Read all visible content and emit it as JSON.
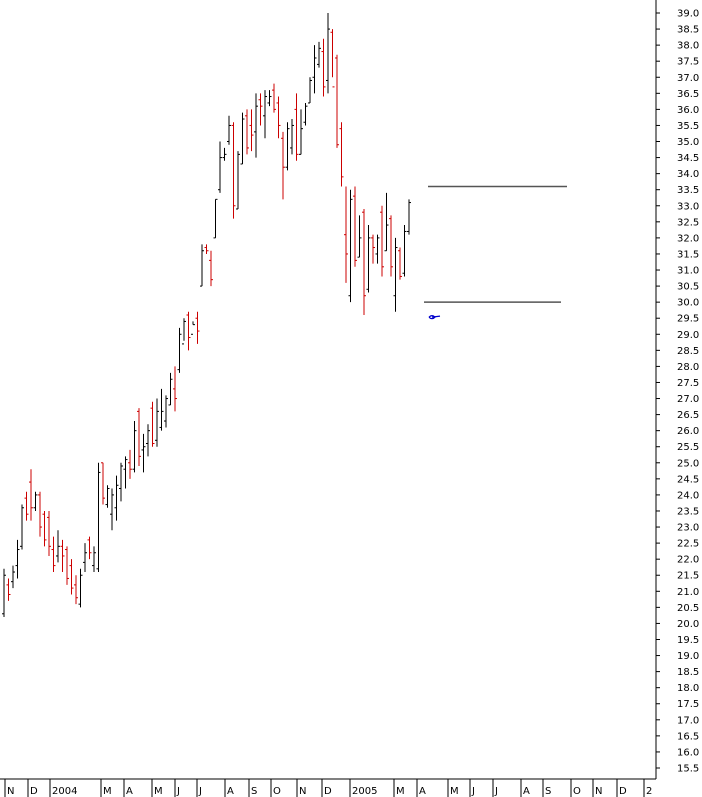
{
  "chart_data": {
    "type": "ohlc",
    "title": "",
    "xlabel": "",
    "ylabel": "",
    "ylim": [
      15.5,
      39.0
    ],
    "y_ticks": [
      15.5,
      16.0,
      16.5,
      17.0,
      17.5,
      18.0,
      18.5,
      19.0,
      19.5,
      20.0,
      20.5,
      21.0,
      21.5,
      22.0,
      22.5,
      23.0,
      23.5,
      24.0,
      24.5,
      25.0,
      25.5,
      26.0,
      26.5,
      27.0,
      27.5,
      28.0,
      28.5,
      29.0,
      29.5,
      30.0,
      30.5,
      31.0,
      31.5,
      32.0,
      32.5,
      33.0,
      33.5,
      34.0,
      34.5,
      35.0,
      35.5,
      36.0,
      36.5,
      37.0,
      37.5,
      38.0,
      38.5,
      39.0
    ],
    "x_month_labels": [
      "N",
      "D",
      "2004",
      "M",
      "A",
      "M",
      "J",
      "J",
      "A",
      "S",
      "O",
      "N",
      "D",
      "2005",
      "M",
      "A",
      "M",
      "J",
      "J",
      "A",
      "S",
      "O",
      "N",
      "D",
      "2"
    ],
    "colors": {
      "up": "#000000",
      "down": "#cc0000",
      "channel": "#555555",
      "marker": "#0000cc"
    },
    "channel": {
      "upper": 33.6,
      "lower": 30.0
    },
    "bars": [
      [
        20.3,
        21.7,
        20.2,
        21.5
      ],
      [
        21.2,
        21.4,
        20.7,
        20.9
      ],
      [
        21.3,
        21.8,
        21.1,
        21.6
      ],
      [
        21.8,
        22.6,
        21.4,
        22.3
      ],
      [
        22.4,
        23.7,
        22.3,
        23.6
      ],
      [
        23.9,
        24.1,
        23.2,
        23.4
      ],
      [
        24.4,
        24.8,
        23.2,
        23.6
      ],
      [
        23.6,
        24.1,
        23.5,
        24.0
      ],
      [
        24.0,
        24.1,
        22.7,
        23.0
      ],
      [
        23.4,
        23.5,
        22.4,
        22.6
      ],
      [
        23.3,
        23.5,
        22.1,
        22.4
      ],
      [
        22.3,
        22.7,
        21.6,
        21.8
      ],
      [
        22.1,
        22.9,
        21.9,
        22.4
      ],
      [
        22.4,
        22.6,
        21.6,
        22.1
      ],
      [
        22.3,
        22.4,
        21.2,
        21.4
      ],
      [
        21.8,
        22.0,
        20.9,
        21.1
      ],
      [
        21.2,
        21.5,
        20.6,
        20.8
      ],
      [
        20.6,
        21.7,
        20.5,
        21.5
      ],
      [
        21.9,
        22.5,
        21.6,
        22.2
      ],
      [
        22.6,
        22.7,
        22.0,
        22.2
      ],
      [
        21.8,
        22.4,
        21.6,
        22.2
      ],
      [
        21.7,
        25.0,
        21.6,
        24.7
      ],
      [
        25.0,
        25.0,
        23.7,
        23.9
      ],
      [
        23.7,
        24.3,
        23.6,
        24.2
      ],
      [
        23.4,
        24.2,
        22.9,
        24.0
      ],
      [
        23.6,
        24.6,
        23.2,
        24.3
      ],
      [
        24.2,
        25.0,
        23.8,
        24.9
      ],
      [
        24.8,
        25.2,
        24.2,
        25.1
      ],
      [
        25.0,
        25.4,
        24.5,
        24.8
      ],
      [
        24.8,
        26.3,
        24.7,
        26.0
      ],
      [
        26.6,
        26.7,
        24.9,
        25.2
      ],
      [
        25.4,
        25.9,
        24.7,
        25.5
      ],
      [
        25.6,
        26.2,
        25.2,
        26.0
      ],
      [
        26.7,
        26.9,
        25.5,
        25.6
      ],
      [
        25.7,
        27.0,
        25.5,
        26.6
      ],
      [
        26.1,
        27.3,
        26.0,
        26.6
      ],
      [
        26.3,
        27.1,
        26.1,
        27.0
      ],
      [
        26.8,
        27.8,
        26.8,
        27.6
      ],
      [
        27.3,
        28.0,
        26.6,
        27.0
      ],
      [
        27.9,
        29.2,
        27.8,
        29.0
      ],
      [
        28.7,
        29.5,
        28.8,
        29.4
      ],
      [
        29.6,
        29.7,
        28.5,
        28.9
      ],
      [
        29.0,
        29.4,
        29.3,
        29.3
      ],
      [
        29.5,
        29.7,
        28.7,
        29.1
      ],
      [
        30.5,
        31.8,
        30.5,
        31.6
      ],
      [
        31.7,
        31.8,
        31.5,
        31.6
      ],
      [
        31.3,
        31.6,
        30.5,
        30.7
      ],
      [
        32.0,
        33.2,
        32.0,
        33.2
      ],
      [
        33.5,
        35.0,
        33.4,
        34.5
      ],
      [
        34.5,
        34.8,
        34.4,
        34.6
      ],
      [
        35.0,
        35.8,
        34.9,
        35.5
      ],
      [
        35.5,
        35.6,
        32.6,
        33.0
      ],
      [
        32.9,
        34.7,
        32.9,
        34.6
      ],
      [
        34.3,
        35.9,
        34.3,
        35.7
      ],
      [
        35.8,
        36.0,
        34.6,
        34.8
      ],
      [
        35.5,
        36.0,
        34.7,
        35.2
      ],
      [
        35.3,
        36.5,
        34.5,
        36.1
      ],
      [
        36.3,
        36.5,
        35.5,
        36.1
      ],
      [
        35.8,
        36.6,
        35.1,
        36.4
      ],
      [
        36.2,
        36.6,
        36.1,
        36.4
      ],
      [
        36.6,
        36.8,
        35.9,
        36.0
      ],
      [
        36.2,
        36.4,
        35.1,
        35.5
      ],
      [
        35.1,
        35.3,
        33.2,
        34.2
      ],
      [
        34.2,
        35.6,
        34.1,
        35.4
      ],
      [
        34.8,
        35.7,
        34.6,
        35.5
      ],
      [
        36.0,
        36.5,
        34.4,
        34.6
      ],
      [
        34.6,
        36.0,
        34.6,
        35.4
      ],
      [
        35.6,
        36.2,
        35.5,
        36.1
      ],
      [
        36.2,
        37.0,
        36.2,
        36.9
      ],
      [
        37.0,
        38.0,
        36.5,
        37.6
      ],
      [
        37.4,
        38.1,
        37.3,
        37.9
      ],
      [
        37.8,
        38.2,
        36.4,
        36.7
      ],
      [
        36.9,
        39.0,
        36.5,
        38.5
      ],
      [
        38.4,
        38.5,
        37.0,
        36.7
      ],
      [
        37.6,
        37.7,
        34.8,
        34.9
      ],
      [
        35.4,
        35.6,
        33.6,
        33.9
      ],
      [
        32.1,
        33.6,
        30.6,
        31.5
      ],
      [
        30.2,
        33.5,
        30.0,
        33.2
      ],
      [
        33.3,
        33.6,
        31.1,
        31.3
      ],
      [
        31.4,
        32.7,
        31.4,
        32.0
      ],
      [
        32.8,
        32.9,
        29.6,
        30.2
      ],
      [
        30.4,
        32.4,
        30.3,
        32.0
      ],
      [
        32.0,
        32.1,
        31.2,
        31.7
      ],
      [
        31.5,
        32.1,
        31.2,
        32.0
      ],
      [
        32.8,
        33.0,
        30.8,
        31.1
      ],
      [
        31.6,
        33.4,
        31.6,
        32.4
      ],
      [
        32.6,
        32.7,
        30.8,
        31.1
      ],
      [
        30.2,
        32.0,
        29.7,
        31.7
      ],
      [
        31.6,
        31.7,
        30.7,
        30.8
      ],
      [
        30.9,
        32.4,
        30.8,
        32.2
      ],
      [
        32.2,
        33.2,
        32.1,
        33.1
      ]
    ]
  }
}
